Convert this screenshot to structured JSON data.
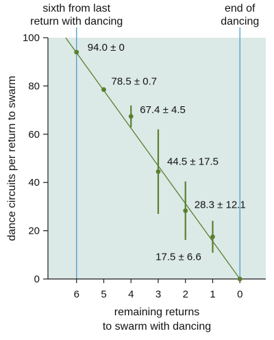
{
  "colors": {
    "plot_background": "#dbe9e7",
    "series": "#5a7f2e",
    "reference_lines": "#4a9cc9",
    "axis": "#1a1a1a",
    "text": "#111111"
  },
  "chart_data": {
    "type": "scatter",
    "xlabel": [
      "remaining returns",
      "to swarm with dancing"
    ],
    "ylabel": "dance circuits per return to swarm",
    "x_reversed": true,
    "xlim": [
      -0.95,
      7.05
    ],
    "ylim": [
      0,
      100
    ],
    "x_ticks": [
      6,
      5,
      4,
      3,
      2,
      1,
      0
    ],
    "y_ticks": [
      0,
      20,
      40,
      60,
      80,
      100
    ],
    "grid": false,
    "points": [
      {
        "x": 6,
        "y": 94.0,
        "err": 0,
        "label": "94.0 ± 0"
      },
      {
        "x": 5,
        "y": 78.5,
        "err": 0.7,
        "label": "78.5 ± 0.7"
      },
      {
        "x": 4,
        "y": 67.4,
        "err": 4.5,
        "label": "67.4 ± 4.5"
      },
      {
        "x": 3,
        "y": 44.5,
        "err": 17.5,
        "label": "44.5 ± 17.5"
      },
      {
        "x": 2,
        "y": 28.3,
        "err": 12.1,
        "label": "28.3 ± 12.1"
      },
      {
        "x": 1,
        "y": 17.5,
        "err": 6.6,
        "label": "17.5 ± 6.6"
      },
      {
        "x": 0,
        "y": 0,
        "err": 0,
        "label": ""
      }
    ],
    "trend_line": {
      "from": [
        6.4,
        100
      ],
      "to": [
        0,
        0
      ]
    },
    "reference_lines": [
      {
        "x": 6,
        "label": [
          "sixth from last",
          "return with dancing"
        ]
      },
      {
        "x": 0,
        "label": [
          "end of",
          "dancing"
        ]
      }
    ]
  }
}
